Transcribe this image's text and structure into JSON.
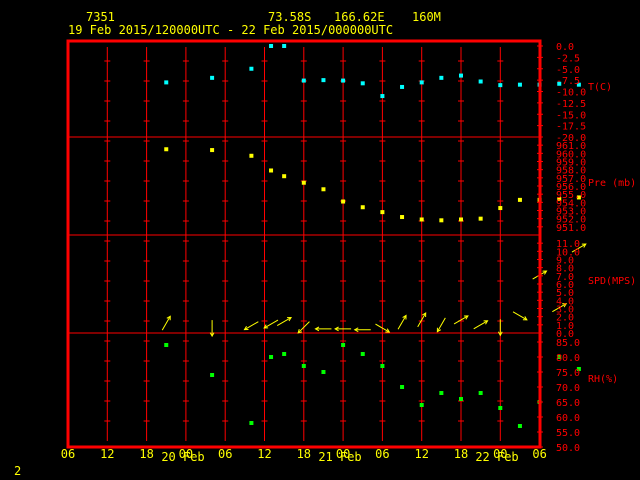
{
  "header": {
    "station": "7351",
    "lat": "73.58S",
    "lon": "166.62E",
    "elev": "160M",
    "period": "19 Feb 2015/120000UTC - 22 Feb 2015/000000UTC"
  },
  "page_number": "2",
  "colors": {
    "frame": "#ff0000",
    "grid": "#ff0000",
    "axis_text_right": "#ff0000",
    "axis_text_bottom": "#ffff00",
    "temperature": "#00ffff",
    "pressure": "#ffff00",
    "wind": "#ffff00",
    "humidity": "#00ff00"
  },
  "chart_data": [
    {
      "type": "scatter",
      "name": "temperature",
      "ylabel": "T(C)",
      "ylim": [
        -20,
        0
      ],
      "yticks": [
        "0.0",
        "-2.5",
        "-5.0",
        "-7.5",
        "-10.0",
        "-12.5",
        "-15.0",
        "-17.5",
        "-20.0"
      ],
      "x_hours": [
        15,
        22,
        28,
        31,
        33,
        36,
        39,
        42,
        45,
        48,
        51,
        54,
        57,
        60,
        63,
        66,
        69,
        72,
        75,
        78
      ],
      "values": [
        -8.0,
        -7.0,
        -5.0,
        0.0,
        0.0,
        -7.6,
        -7.5,
        -7.6,
        -8.2,
        -11.0,
        -9.0,
        -8.0,
        -7.0,
        -6.5,
        -7.8,
        -8.6,
        -8.5,
        -8.5,
        -8.3,
        -8.5
      ]
    },
    {
      "type": "scatter",
      "name": "pressure",
      "ylabel": "Pre (mb)",
      "ylim": [
        950,
        962
      ],
      "yticks": [
        "961.0",
        "960.0",
        "959.0",
        "958.0",
        "957.0",
        "956.0",
        "955.0",
        "954.0",
        "953.0",
        "952.0",
        "951.0"
      ],
      "x_hours": [
        15,
        22,
        28,
        31,
        33,
        36,
        39,
        42,
        45,
        48,
        51,
        54,
        57,
        60,
        63,
        66,
        69,
        72,
        75,
        78
      ],
      "values": [
        960.5,
        960.4,
        959.7,
        957.9,
        957.2,
        956.4,
        955.6,
        954.1,
        953.4,
        952.8,
        952.2,
        951.9,
        951.8,
        951.9,
        952.0,
        953.3,
        954.3,
        954.3,
        954.4,
        954.6
      ]
    },
    {
      "type": "vector",
      "name": "wind",
      "ylabel": "SPD(MPS)",
      "ylim": [
        0,
        12
      ],
      "yticks": [
        "11.0",
        "10.0",
        "9.0",
        "8.0",
        "7.0",
        "6.0",
        "5.0",
        "4.0",
        "3.0",
        "2.0",
        "1.0",
        "0.0"
      ],
      "x_hours": [
        15,
        22,
        28,
        31,
        33,
        36,
        39,
        42,
        45,
        48,
        51,
        54,
        57,
        60,
        63,
        66,
        69,
        72,
        75,
        78
      ],
      "speed": [
        1.2,
        0.6,
        0.9,
        1.1,
        1.4,
        0.7,
        0.5,
        0.5,
        0.4,
        0.6,
        1.3,
        1.6,
        1.0,
        1.6,
        1.0,
        0.7,
        2.1,
        7.1,
        3.1,
        10.4
      ],
      "direction_deg": [
        210,
        0,
        60,
        60,
        240,
        45,
        90,
        90,
        90,
        300,
        210,
        210,
        30,
        240,
        240,
        0,
        300,
        240,
        240,
        240
      ]
    },
    {
      "type": "scatter",
      "name": "humidity",
      "ylabel": "RH(%)",
      "ylim": [
        50,
        88
      ],
      "yticks": [
        "85.0",
        "80.0",
        "75.0",
        "70.0",
        "65.0",
        "60.0",
        "55.0",
        "50.0"
      ],
      "x_hours": [
        15,
        22,
        28,
        31,
        33,
        36,
        39,
        42,
        45,
        48,
        51,
        54,
        57,
        60,
        63,
        66,
        69,
        72,
        75,
        78
      ],
      "values": [
        84,
        74,
        58,
        80,
        81,
        77,
        75,
        84,
        81,
        77,
        70,
        64,
        68,
        66,
        68,
        63,
        57,
        65,
        80,
        76
      ]
    }
  ],
  "x_axis": {
    "hour_ticks": [
      "06",
      "12",
      "18",
      "00",
      "06",
      "12",
      "18",
      "00",
      "06",
      "12",
      "18",
      "00",
      "06"
    ],
    "day_labels": [
      "20 Feb",
      "21 Feb",
      "22 Feb"
    ]
  }
}
